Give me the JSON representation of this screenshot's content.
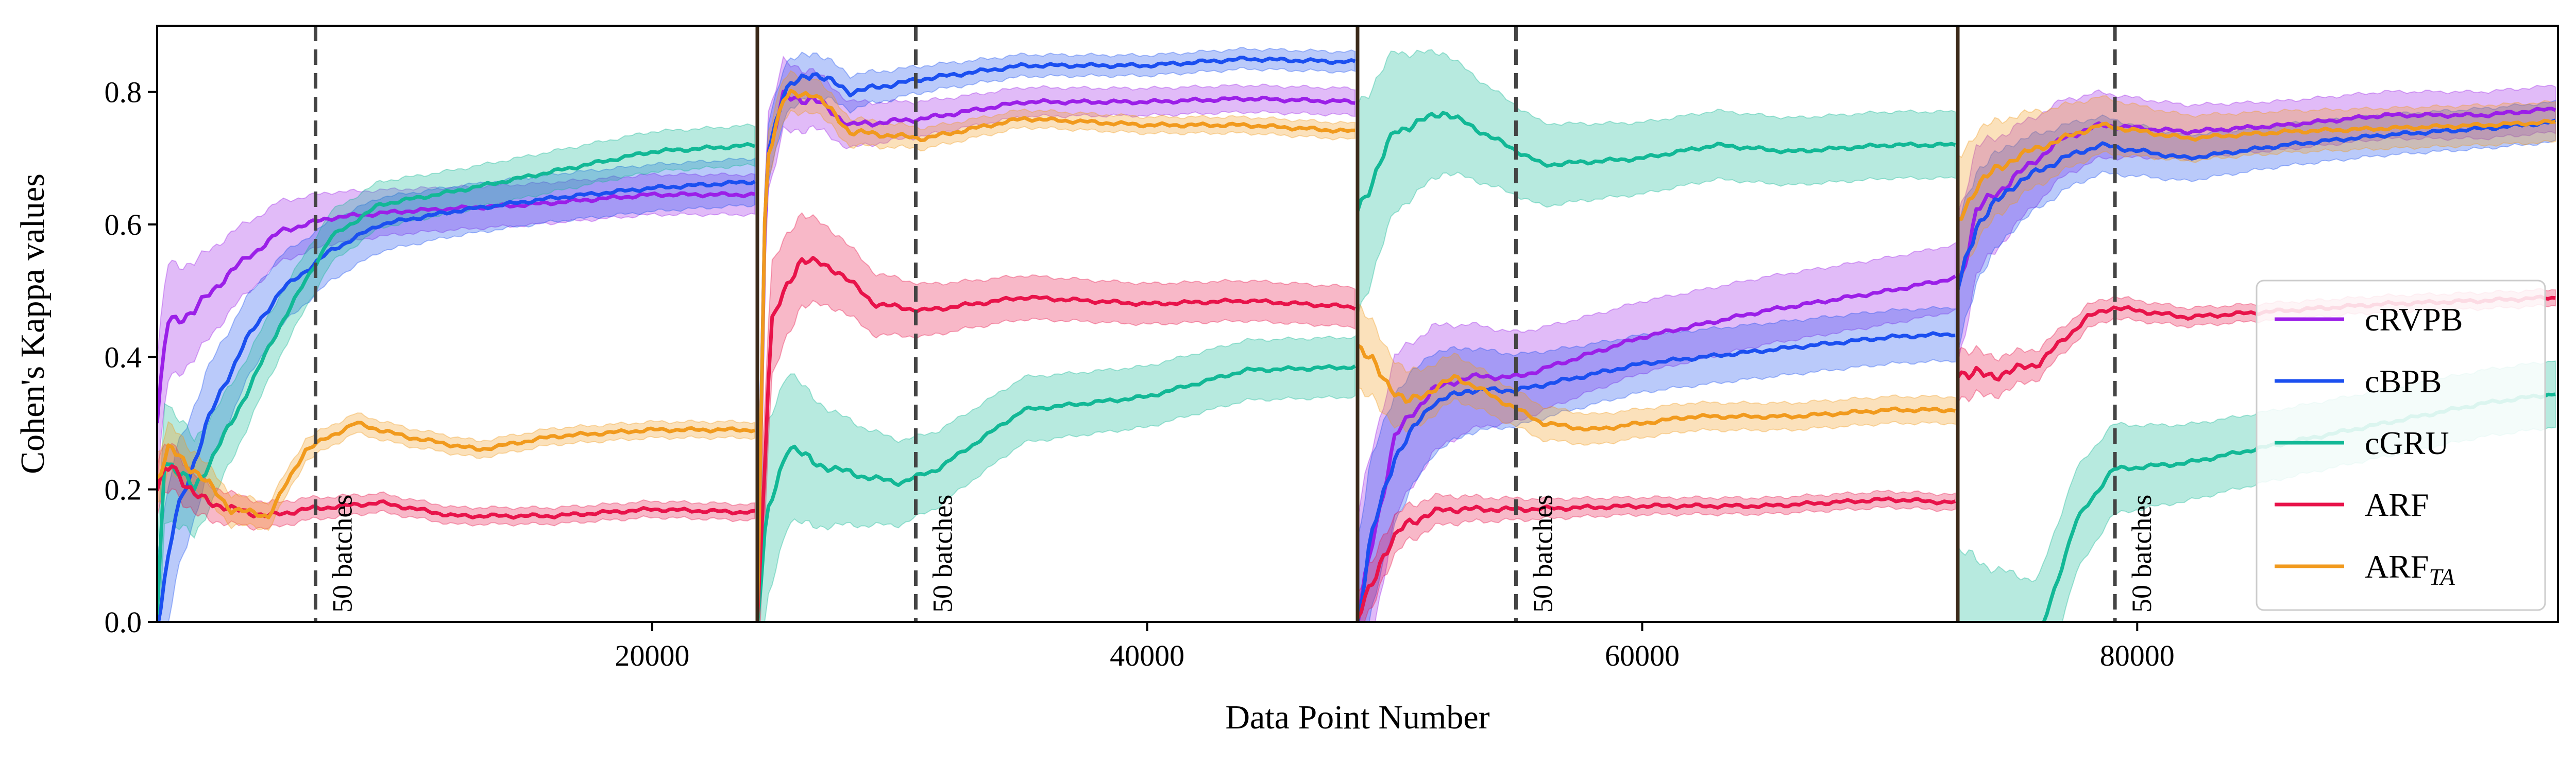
{
  "chart_data": {
    "type": "line",
    "title": "",
    "xlabel": "Data Point Number",
    "ylabel": "Cohen's Kappa values",
    "xlim": [
      0,
      97000
    ],
    "ylim": [
      0.0,
      0.9
    ],
    "xticks": [
      20000,
      40000,
      60000,
      80000
    ],
    "xtick_labels": [
      "20000",
      "40000",
      "60000",
      "80000"
    ],
    "yticks": [
      0.0,
      0.2,
      0.4,
      0.6,
      0.8
    ],
    "ytick_labels": [
      "0.0",
      "0.2",
      "0.4",
      "0.6",
      "0.8"
    ],
    "grid": false,
    "legend_position": "bottom-right",
    "segment_boundaries": [
      24250,
      48500,
      72750
    ],
    "annotations": [
      {
        "text": "50 batches",
        "x": 6400
      },
      {
        "text": "50 batches",
        "x": 30650
      },
      {
        "text": "50 batches",
        "x": 54900
      },
      {
        "text": "50 batches",
        "x": 79100
      }
    ],
    "series": [
      {
        "name": "cRVPB",
        "color": "#9b1fe8",
        "band_width": [
          0.03,
          0.02,
          0.05,
          0.035
        ],
        "points": [
          [
            0,
            0.3
          ],
          [
            400,
            0.45
          ],
          [
            1500,
            0.47
          ],
          [
            3000,
            0.53
          ],
          [
            5000,
            0.59
          ],
          [
            7000,
            0.61
          ],
          [
            10000,
            0.62
          ],
          [
            15000,
            0.63
          ],
          [
            20000,
            0.645
          ],
          [
            24250,
            0.645
          ],
          [
            24250,
            0.0
          ],
          [
            24600,
            0.7
          ],
          [
            25300,
            0.79
          ],
          [
            26500,
            0.79
          ],
          [
            28000,
            0.75
          ],
          [
            31000,
            0.76
          ],
          [
            35000,
            0.785
          ],
          [
            40000,
            0.785
          ],
          [
            44000,
            0.79
          ],
          [
            48500,
            0.785
          ],
          [
            48500,
            0.0
          ],
          [
            49000,
            0.1
          ],
          [
            50000,
            0.28
          ],
          [
            51500,
            0.35
          ],
          [
            53000,
            0.37
          ],
          [
            55000,
            0.37
          ],
          [
            60000,
            0.43
          ],
          [
            65000,
            0.47
          ],
          [
            70000,
            0.5
          ],
          [
            72750,
            0.52
          ],
          [
            72750,
            0.5
          ],
          [
            73500,
            0.62
          ],
          [
            75000,
            0.67
          ],
          [
            77000,
            0.73
          ],
          [
            78500,
            0.75
          ],
          [
            82000,
            0.74
          ],
          [
            86000,
            0.75
          ],
          [
            90000,
            0.765
          ],
          [
            94000,
            0.765
          ],
          [
            97000,
            0.775
          ]
        ]
      },
      {
        "name": "cBPB",
        "color": "#1b4ff0",
        "band_width": [
          0.035,
          0.015,
          0.04,
          0.03
        ],
        "points": [
          [
            0,
            0.0
          ],
          [
            700,
            0.15
          ],
          [
            2000,
            0.3
          ],
          [
            3500,
            0.42
          ],
          [
            5000,
            0.5
          ],
          [
            7000,
            0.56
          ],
          [
            9000,
            0.6
          ],
          [
            12000,
            0.62
          ],
          [
            16000,
            0.64
          ],
          [
            20000,
            0.655
          ],
          [
            24250,
            0.665
          ],
          [
            24250,
            0.0
          ],
          [
            24600,
            0.7
          ],
          [
            25300,
            0.8
          ],
          [
            26500,
            0.83
          ],
          [
            28000,
            0.8
          ],
          [
            31000,
            0.82
          ],
          [
            35000,
            0.84
          ],
          [
            40000,
            0.84
          ],
          [
            44000,
            0.85
          ],
          [
            48500,
            0.845
          ],
          [
            48500,
            0.0
          ],
          [
            49000,
            0.12
          ],
          [
            50000,
            0.25
          ],
          [
            51500,
            0.33
          ],
          [
            53000,
            0.35
          ],
          [
            55000,
            0.35
          ],
          [
            60000,
            0.39
          ],
          [
            65000,
            0.41
          ],
          [
            70000,
            0.43
          ],
          [
            72750,
            0.435
          ],
          [
            72750,
            0.5
          ],
          [
            73500,
            0.6
          ],
          [
            75000,
            0.66
          ],
          [
            77000,
            0.7
          ],
          [
            78500,
            0.72
          ],
          [
            82000,
            0.7
          ],
          [
            86000,
            0.72
          ],
          [
            90000,
            0.735
          ],
          [
            94000,
            0.745
          ],
          [
            97000,
            0.755
          ]
        ]
      },
      {
        "name": "cGRU",
        "color": "#12b896",
        "band_width": [
          0.03,
          0.045,
          0.05,
          0.05
        ],
        "points": [
          [
            0,
            0.0
          ],
          [
            300,
            0.25
          ],
          [
            1500,
            0.2
          ],
          [
            3000,
            0.3
          ],
          [
            5000,
            0.45
          ],
          [
            7000,
            0.58
          ],
          [
            9000,
            0.63
          ],
          [
            12000,
            0.65
          ],
          [
            16000,
            0.68
          ],
          [
            20000,
            0.71
          ],
          [
            24250,
            0.72
          ],
          [
            24250,
            0.0
          ],
          [
            24600,
            0.15
          ],
          [
            25500,
            0.27
          ],
          [
            26500,
            0.24
          ],
          [
            28500,
            0.22
          ],
          [
            30000,
            0.21
          ],
          [
            31500,
            0.23
          ],
          [
            35000,
            0.32
          ],
          [
            40000,
            0.34
          ],
          [
            44000,
            0.38
          ],
          [
            48500,
            0.385
          ],
          [
            48500,
            0.62
          ],
          [
            50000,
            0.74
          ],
          [
            52000,
            0.77
          ],
          [
            54000,
            0.73
          ],
          [
            56000,
            0.69
          ],
          [
            60000,
            0.7
          ],
          [
            63000,
            0.72
          ],
          [
            66000,
            0.71
          ],
          [
            70000,
            0.72
          ],
          [
            72750,
            0.72
          ],
          [
            72750,
            -0.05
          ],
          [
            76000,
            -0.03
          ],
          [
            77500,
            0.15
          ],
          [
            79000,
            0.23
          ],
          [
            82000,
            0.24
          ],
          [
            86000,
            0.27
          ],
          [
            90000,
            0.3
          ],
          [
            94000,
            0.33
          ],
          [
            97000,
            0.345
          ]
        ]
      },
      {
        "name": "ARF",
        "color": "#e8134a",
        "band_width": [
          0.012,
          0.03,
          0.012,
          0.012
        ],
        "points": [
          [
            0,
            0.2
          ],
          [
            600,
            0.24
          ],
          [
            1500,
            0.19
          ],
          [
            3000,
            0.17
          ],
          [
            4500,
            0.16
          ],
          [
            6000,
            0.17
          ],
          [
            9000,
            0.18
          ],
          [
            12000,
            0.16
          ],
          [
            16000,
            0.16
          ],
          [
            20000,
            0.17
          ],
          [
            24250,
            0.165
          ],
          [
            24250,
            0.0
          ],
          [
            24800,
            0.45
          ],
          [
            26000,
            0.55
          ],
          [
            27500,
            0.53
          ],
          [
            29000,
            0.48
          ],
          [
            31000,
            0.47
          ],
          [
            35000,
            0.49
          ],
          [
            40000,
            0.48
          ],
          [
            44000,
            0.485
          ],
          [
            48500,
            0.475
          ],
          [
            48500,
            0.0
          ],
          [
            49500,
            0.1
          ],
          [
            50500,
            0.15
          ],
          [
            52000,
            0.17
          ],
          [
            55000,
            0.17
          ],
          [
            60000,
            0.175
          ],
          [
            65000,
            0.175
          ],
          [
            70000,
            0.185
          ],
          [
            72750,
            0.18
          ],
          [
            72750,
            0.38
          ],
          [
            74000,
            0.37
          ],
          [
            76000,
            0.39
          ],
          [
            78000,
            0.46
          ],
          [
            79000,
            0.475
          ],
          [
            82000,
            0.46
          ],
          [
            86000,
            0.47
          ],
          [
            90000,
            0.48
          ],
          [
            94000,
            0.485
          ],
          [
            97000,
            0.49
          ]
        ]
      },
      {
        "name": "ARF_TA",
        "legend_label": "ARF",
        "legend_subscript": "TA",
        "color": "#f19a1d",
        "band_width": [
          0.012,
          0.012,
          0.02,
          0.03
        ],
        "points": [
          [
            0,
            0.22
          ],
          [
            500,
            0.26
          ],
          [
            1500,
            0.23
          ],
          [
            3000,
            0.17
          ],
          [
            4500,
            0.16
          ],
          [
            6000,
            0.26
          ],
          [
            8000,
            0.3
          ],
          [
            10000,
            0.28
          ],
          [
            13000,
            0.26
          ],
          [
            16000,
            0.28
          ],
          [
            20000,
            0.29
          ],
          [
            24250,
            0.29
          ],
          [
            24250,
            0.0
          ],
          [
            24600,
            0.7
          ],
          [
            25300,
            0.79
          ],
          [
            26500,
            0.8
          ],
          [
            28000,
            0.74
          ],
          [
            31000,
            0.73
          ],
          [
            35000,
            0.76
          ],
          [
            40000,
            0.75
          ],
          [
            44000,
            0.75
          ],
          [
            48500,
            0.74
          ],
          [
            48500,
            0.42
          ],
          [
            49500,
            0.37
          ],
          [
            50500,
            0.33
          ],
          [
            52500,
            0.37
          ],
          [
            54000,
            0.34
          ],
          [
            56000,
            0.3
          ],
          [
            58000,
            0.29
          ],
          [
            62000,
            0.31
          ],
          [
            66000,
            0.31
          ],
          [
            70000,
            0.32
          ],
          [
            72750,
            0.32
          ],
          [
            72750,
            0.6
          ],
          [
            73500,
            0.66
          ],
          [
            75000,
            0.7
          ],
          [
            77000,
            0.73
          ],
          [
            78500,
            0.75
          ],
          [
            82000,
            0.73
          ],
          [
            86000,
            0.74
          ],
          [
            90000,
            0.745
          ],
          [
            94000,
            0.75
          ],
          [
            97000,
            0.755
          ]
        ]
      }
    ]
  }
}
